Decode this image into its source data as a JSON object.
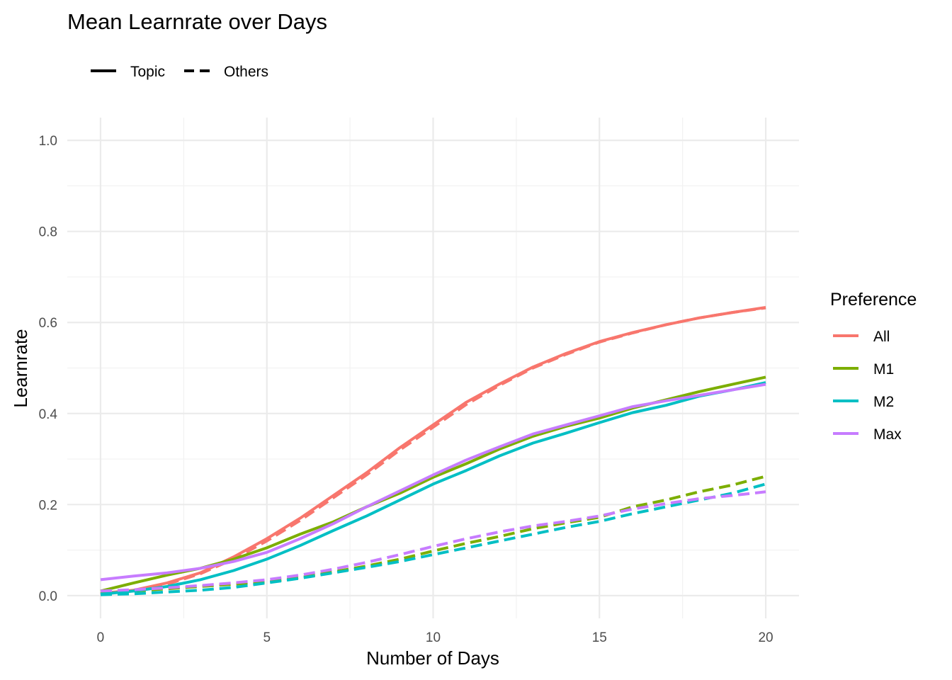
{
  "chart_data": {
    "type": "line",
    "title": "Mean Learnrate over Days",
    "xlabel": "Number of Days",
    "ylabel": "Learnrate",
    "xlim": [
      -1,
      21
    ],
    "ylim": [
      -0.05,
      1.05
    ],
    "x_ticks": [
      "0",
      "5",
      "10",
      "15",
      "20"
    ],
    "y_ticks": [
      "0.0",
      "0.2",
      "0.4",
      "0.6",
      "0.8",
      "1.0"
    ],
    "grid": true,
    "linetype_legend": {
      "position": "top-left",
      "items": [
        "Topic",
        "Others"
      ]
    },
    "color_legend": {
      "position": "right",
      "title": "Preference",
      "items": [
        "All",
        "M1",
        "M2",
        "Max"
      ]
    },
    "colors": {
      "All": "#F8766D",
      "M1": "#7CAE00",
      "M2": "#00BFC4",
      "Max": "#C77CFF"
    },
    "x": [
      0,
      1,
      2,
      3,
      4,
      5,
      6,
      7,
      8,
      9,
      10,
      11,
      12,
      13,
      14,
      15,
      16,
      17,
      18,
      19,
      20
    ],
    "series": [
      {
        "group": "All",
        "linetype": "Topic",
        "values": [
          0.005,
          0.012,
          0.028,
          0.05,
          0.085,
          0.125,
          0.17,
          0.22,
          0.27,
          0.325,
          0.375,
          0.425,
          0.465,
          0.502,
          0.532,
          0.558,
          0.578,
          0.595,
          0.61,
          0.622,
          0.633
        ]
      },
      {
        "group": "All",
        "linetype": "Others",
        "values": [
          0.003,
          0.01,
          0.025,
          0.048,
          0.08,
          0.12,
          0.165,
          0.215,
          0.265,
          0.32,
          0.37,
          0.42,
          0.462,
          0.5,
          0.53,
          0.557,
          0.577,
          0.595,
          0.61,
          0.622,
          0.632
        ]
      },
      {
        "group": "M1",
        "linetype": "Topic",
        "values": [
          0.01,
          0.028,
          0.045,
          0.06,
          0.08,
          0.105,
          0.135,
          0.162,
          0.195,
          0.225,
          0.26,
          0.29,
          0.322,
          0.35,
          0.372,
          0.39,
          0.412,
          0.43,
          0.448,
          0.464,
          0.48
        ]
      },
      {
        "group": "M1",
        "linetype": "Others",
        "values": [
          0.005,
          0.01,
          0.015,
          0.02,
          0.025,
          0.03,
          0.04,
          0.052,
          0.065,
          0.08,
          0.098,
          0.115,
          0.13,
          0.147,
          0.16,
          0.172,
          0.195,
          0.21,
          0.228,
          0.243,
          0.262
        ]
      },
      {
        "group": "M2",
        "linetype": "Topic",
        "values": [
          0.003,
          0.01,
          0.02,
          0.035,
          0.055,
          0.08,
          0.11,
          0.143,
          0.175,
          0.21,
          0.245,
          0.275,
          0.307,
          0.335,
          0.357,
          0.38,
          0.402,
          0.418,
          0.438,
          0.452,
          0.468
        ]
      },
      {
        "group": "M2",
        "linetype": "Others",
        "values": [
          0.002,
          0.004,
          0.008,
          0.012,
          0.018,
          0.028,
          0.038,
          0.05,
          0.062,
          0.075,
          0.09,
          0.105,
          0.12,
          0.135,
          0.15,
          0.163,
          0.18,
          0.195,
          0.21,
          0.225,
          0.245
        ]
      },
      {
        "group": "Max",
        "linetype": "Topic",
        "values": [
          0.035,
          0.043,
          0.05,
          0.06,
          0.075,
          0.095,
          0.125,
          0.158,
          0.195,
          0.23,
          0.265,
          0.298,
          0.327,
          0.355,
          0.375,
          0.395,
          0.415,
          0.428,
          0.44,
          0.452,
          0.464
        ]
      },
      {
        "group": "Max",
        "linetype": "Others",
        "values": [
          0.01,
          0.013,
          0.017,
          0.022,
          0.028,
          0.035,
          0.045,
          0.058,
          0.073,
          0.09,
          0.108,
          0.125,
          0.14,
          0.153,
          0.163,
          0.175,
          0.19,
          0.202,
          0.213,
          0.22,
          0.228
        ]
      }
    ]
  }
}
